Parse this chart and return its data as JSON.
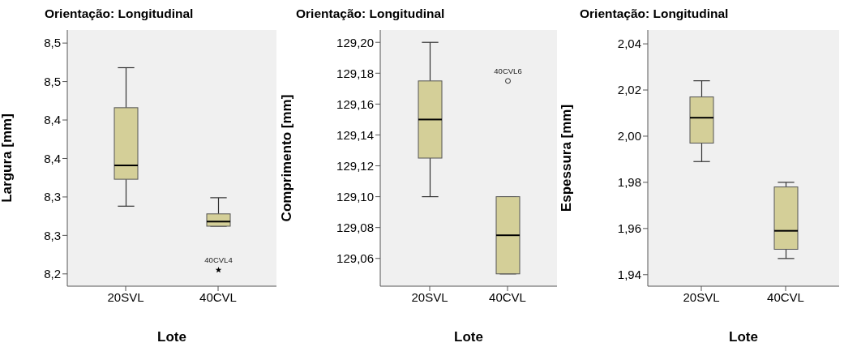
{
  "chart_data": [
    {
      "type": "box",
      "title": "Orientação: Longitudinal",
      "xlabel": "Lote",
      "ylabel": "Largura [mm]",
      "categories": [
        "20SVL",
        "40CVL"
      ],
      "color": "#d4cf98",
      "marker": "star",
      "boxes": [
        {
          "low": 8.288,
          "q1": 8.323,
          "median": 8.341,
          "q3": 8.416,
          "high": 8.468
        },
        {
          "low": 8.262,
          "q1": 8.262,
          "median": 8.268,
          "q3": 8.278,
          "high": 8.299,
          "outliers": [
            8.205
          ]
        }
      ],
      "annotations": [
        "40CVL4"
      ],
      "ylim": [
        8.184,
        8.517
      ],
      "yticks": [
        {
          "value": 8.2,
          "label": "8,2"
        },
        {
          "value": 8.25,
          "label": "8,3"
        },
        {
          "value": 8.3,
          "label": "8,3"
        },
        {
          "value": 8.35,
          "label": "8,4"
        },
        {
          "value": 8.4,
          "label": "8,4"
        },
        {
          "value": 8.45,
          "label": "8,5"
        },
        {
          "value": 8.5,
          "label": "8,5"
        }
      ],
      "grid": false,
      "legend": false
    },
    {
      "type": "box",
      "title": "Orientação: Longitudinal",
      "xlabel": "Lote",
      "ylabel": "Comprimento [mm]",
      "categories": [
        "20SVL",
        "40CVL"
      ],
      "color": "#d4cf98",
      "marker": "circle",
      "boxes": [
        {
          "low": 129.1,
          "q1": 129.125,
          "median": 129.15,
          "q3": 129.175,
          "high": 129.2
        },
        {
          "low": 129.05,
          "q1": 129.05,
          "median": 129.075,
          "q3": 129.1,
          "high": 129.1,
          "outliers": [
            129.175
          ]
        }
      ],
      "annotations": [
        "40CVL6"
      ],
      "ylim": [
        129.042,
        129.208
      ],
      "yticks": [
        {
          "value": 129.06,
          "label": "129,06"
        },
        {
          "value": 129.08,
          "label": "129,08"
        },
        {
          "value": 129.1,
          "label": "129,10"
        },
        {
          "value": 129.12,
          "label": "129,12"
        },
        {
          "value": 129.14,
          "label": "129,14"
        },
        {
          "value": 129.16,
          "label": "129,16"
        },
        {
          "value": 129.18,
          "label": "129,18"
        },
        {
          "value": 129.2,
          "label": "129,20"
        }
      ],
      "grid": false,
      "legend": false
    },
    {
      "type": "box",
      "title": "Orientação: Longitudinal",
      "xlabel": "Lote",
      "ylabel": "Espessura [mm]",
      "categories": [
        "20SVL",
        "40CVL"
      ],
      "color": "#d4cf98",
      "boxes": [
        {
          "low": 1.989,
          "q1": 1.997,
          "median": 2.008,
          "q3": 2.017,
          "high": 2.024
        },
        {
          "low": 1.947,
          "q1": 1.951,
          "median": 1.959,
          "q3": 1.978,
          "high": 1.98
        }
      ],
      "ylim": [
        1.935,
        2.046
      ],
      "yticks": [
        {
          "value": 1.94,
          "label": "1,94"
        },
        {
          "value": 1.96,
          "label": "1,96"
        },
        {
          "value": 1.98,
          "label": "1,98"
        },
        {
          "value": 2.0,
          "label": "2,00"
        },
        {
          "value": 2.02,
          "label": "2,02"
        },
        {
          "value": 2.04,
          "label": "2,04"
        }
      ],
      "grid": false,
      "legend": false
    }
  ]
}
